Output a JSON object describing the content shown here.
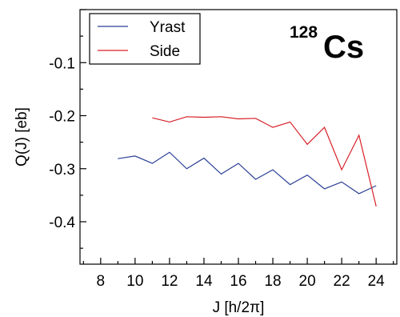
{
  "chart_data": {
    "type": "line",
    "xlabel": "J  [h/2π]",
    "ylabel": "Q(J)  [eb]",
    "xlim": [
      6.8,
      25.2
    ],
    "ylim": [
      -0.48,
      0.0
    ],
    "xticks": [
      8,
      10,
      12,
      14,
      16,
      18,
      20,
      22,
      24
    ],
    "xtick_labels": [
      "8",
      "10",
      "12",
      "14",
      "16",
      "18",
      "20",
      "22",
      "24"
    ],
    "yticks": [
      -0.1,
      -0.2,
      -0.3,
      -0.4
    ],
    "ytick_labels": [
      "-0.1",
      "-0.2",
      "-0.3",
      "-0.4"
    ],
    "annotation": {
      "mass": "128",
      "element": "Cs"
    },
    "legend": "top-left",
    "grid": false,
    "series": [
      {
        "name": "Yrast",
        "color": "#2b3f94",
        "x": [
          9,
          10,
          11,
          12,
          13,
          14,
          15,
          16,
          17,
          18,
          19,
          20,
          21,
          22,
          23,
          24
        ],
        "y": [
          -0.281,
          -0.276,
          -0.29,
          -0.269,
          -0.3,
          -0.28,
          -0.31,
          -0.29,
          -0.32,
          -0.302,
          -0.33,
          -0.312,
          -0.338,
          -0.325,
          -0.347,
          -0.332
        ]
      },
      {
        "name": "Side",
        "color": "#d62027",
        "x": [
          11,
          12,
          13,
          14,
          15,
          16,
          17,
          18,
          19,
          20,
          21,
          22,
          23,
          24
        ],
        "y": [
          -0.204,
          -0.212,
          -0.202,
          -0.203,
          -0.202,
          -0.206,
          -0.205,
          -0.222,
          -0.212,
          -0.254,
          -0.222,
          -0.302,
          -0.237,
          -0.371
        ]
      }
    ]
  }
}
